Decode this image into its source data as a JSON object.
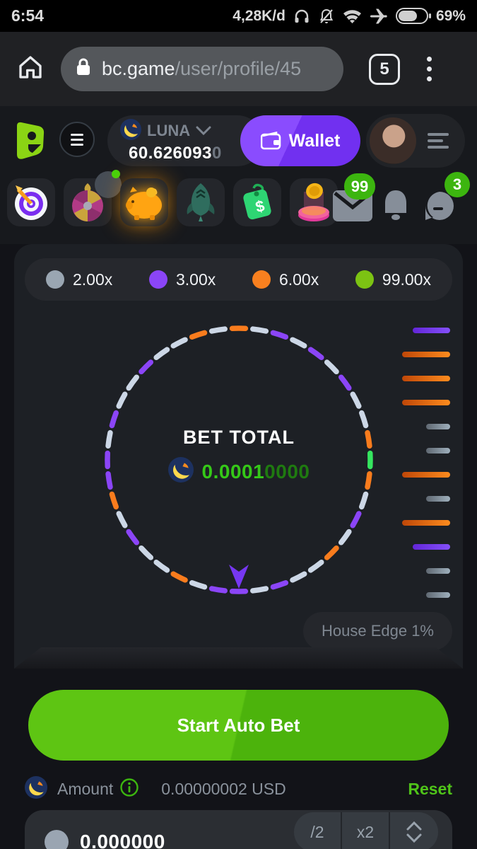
{
  "status_bar": {
    "time": "6:54",
    "network_speed": "4,28K/d",
    "battery_percent": "69%"
  },
  "browser": {
    "url_domain": "bc.game",
    "url_path": "/user/profile/45",
    "tab_count": "5"
  },
  "header": {
    "currency": "LUNA",
    "balance_main": "60.626093",
    "balance_dim": "0",
    "wallet_label": "Wallet"
  },
  "nav": {
    "mail_badge": "99",
    "chat_badge": "3"
  },
  "game": {
    "legend": [
      {
        "color": "#9aa6b2",
        "label": "2.00x"
      },
      {
        "color": "#8b45f7",
        "label": "3.00x"
      },
      {
        "color": "#f8801f",
        "label": "6.00x"
      },
      {
        "color": "#7cc313",
        "label": "99.00x"
      }
    ],
    "bet_total_label": "BET TOTAL",
    "bet_amount_bright": "0.0001",
    "bet_amount_dim": "0000",
    "house_edge_label": "House Edge 1%",
    "wheel_colors": {
      "white": "#ccd7e6",
      "purple": "#8b45f7",
      "orange": "#f97c1d",
      "green": "#35e55f"
    },
    "wheel_segments": [
      "orange",
      "white",
      "purple",
      "white",
      "purple",
      "white",
      "purple",
      "white",
      "white",
      "orange",
      "green",
      "orange",
      "white",
      "purple",
      "white",
      "orange",
      "white",
      "white",
      "purple",
      "white",
      "purple",
      "purple",
      "white",
      "orange",
      "white",
      "white",
      "purple",
      "white",
      "orange",
      "purple",
      "purple",
      "white",
      "purple",
      "white",
      "white",
      "purple",
      "white",
      "white",
      "orange",
      "white"
    ],
    "history_bars": [
      "purple",
      "orange",
      "orange",
      "orange",
      "gray",
      "gray",
      "orange",
      "gray",
      "orange",
      "purple",
      "gray",
      "gray"
    ]
  },
  "controls": {
    "start_button_label": "Start Auto Bet",
    "amount_label": "Amount",
    "amount_usd": "0.00000002 USD",
    "reset_label": "Reset",
    "bet_input_value": "0.000000",
    "half_label": "/2",
    "double_label": "x2"
  }
}
